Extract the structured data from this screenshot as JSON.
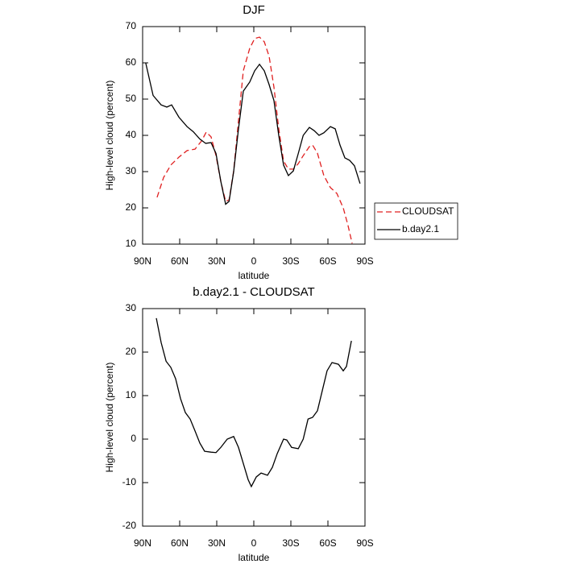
{
  "chart_data": [
    {
      "type": "line",
      "title": "DJF",
      "xlabel": "latitude",
      "ylabel": "High-level cloud (percent)",
      "xlim": [
        90,
        -90
      ],
      "ylim": [
        10,
        70
      ],
      "xticks": [
        {
          "value": 90,
          "label": "90N"
        },
        {
          "value": 60,
          "label": "60N"
        },
        {
          "value": 30,
          "label": "30N"
        },
        0,
        {
          "value": -30,
          "label": "30S"
        },
        {
          "value": -60,
          "label": "60S"
        },
        {
          "value": -90,
          "label": "90S"
        }
      ],
      "yticks": [
        10,
        20,
        30,
        40,
        50,
        60,
        70
      ],
      "legend": "right",
      "series": [
        {
          "name": "CLOUDSAT",
          "color": "#e02020",
          "dashed": true,
          "x": [
            78.3,
            73,
            67.2,
            60.6,
            54,
            47.6,
            42.4,
            38.5,
            34.6,
            30.6,
            26.7,
            22.8,
            20,
            16.3,
            12.4,
            8.5,
            3.3,
            -0.7,
            -4.6,
            -8.5,
            -12.4,
            -16.3,
            -20.2,
            -24.1,
            -28,
            -32,
            -36,
            -40,
            -45,
            -47.6,
            -51.5,
            -56.7,
            -62,
            -67.2,
            -72.4,
            -76.3,
            -79.6
          ],
          "values": [
            22.9,
            28.4,
            31.8,
            34,
            35.8,
            36.2,
            38.4,
            40.9,
            39.6,
            34.4,
            27.3,
            21.8,
            22.2,
            30.2,
            44,
            57.8,
            64,
            66.7,
            67.1,
            65.8,
            61.8,
            53.3,
            41.8,
            32.9,
            30.7,
            30.7,
            32.2,
            34.4,
            36.9,
            37.3,
            35.1,
            28.9,
            25.6,
            24,
            20,
            15.1,
            10.2
          ]
        },
        {
          "name": "b.day2.1",
          "color": "#000000",
          "dashed": false,
          "x": [
            87.5,
            81.5,
            75,
            70.4,
            66.5,
            60.6,
            54,
            49,
            43.7,
            39,
            34.6,
            30.6,
            26.7,
            22.8,
            20,
            16.3,
            12.4,
            8.5,
            3.3,
            -0.7,
            -4.6,
            -8.5,
            -12.4,
            -16.3,
            -20.2,
            -24.1,
            -28,
            -32,
            -36,
            -40,
            -45,
            -48.9,
            -52.8,
            -56.7,
            -62,
            -65.9,
            -69.8,
            -73.7,
            -77.6,
            -81.5,
            -86
          ],
          "values": [
            60,
            51,
            48.4,
            47.8,
            48.4,
            45,
            42.4,
            41,
            39,
            37.8,
            38,
            35,
            27.3,
            21,
            21.8,
            30,
            41.8,
            52.2,
            54.7,
            57.8,
            59.6,
            57.8,
            54,
            49.6,
            40,
            31.8,
            28.9,
            30.2,
            35,
            40,
            42.2,
            41.3,
            40,
            40.7,
            42.4,
            41.8,
            37.3,
            33.8,
            33.1,
            31.6,
            26.7
          ]
        }
      ]
    },
    {
      "type": "line",
      "title": "b.day2.1 - CLOUDSAT",
      "xlabel": "latitude",
      "ylabel": "High-level cloud (percent)",
      "xlim": [
        90,
        -90
      ],
      "ylim": [
        -20,
        30
      ],
      "xticks": [
        {
          "value": 90,
          "label": "90N"
        },
        {
          "value": 60,
          "label": "60N"
        },
        {
          "value": 30,
          "label": "30N"
        },
        0,
        {
          "value": -30,
          "label": "30S"
        },
        {
          "value": -60,
          "label": "60S"
        },
        {
          "value": -90,
          "label": "90S"
        }
      ],
      "yticks": [
        -20,
        -10,
        0,
        10,
        20,
        30
      ],
      "series": [
        {
          "color": "#000000",
          "dashed": false,
          "x": [
            78.9,
            75,
            71,
            67.2,
            63.3,
            59.3,
            55.4,
            51.5,
            47.6,
            43.7,
            39.8,
            34.6,
            30.6,
            26.7,
            21.5,
            16.3,
            12.4,
            8.5,
            4.6,
            2,
            -2,
            -5.9,
            -11.1,
            -15,
            -19,
            -24.1,
            -26.7,
            -30.6,
            -36,
            -40,
            -43.9,
            -47.6,
            -51.5,
            -55.4,
            -59.3,
            -63.3,
            -68.5,
            -72.4,
            -75,
            -79
          ],
          "values": [
            27.8,
            22.2,
            17.9,
            16.5,
            13.9,
            9.3,
            6.1,
            4.6,
            1.9,
            -0.9,
            -2.8,
            -3,
            -3.1,
            -1.9,
            0,
            0.6,
            -1.9,
            -5.6,
            -9.3,
            -10.9,
            -8.7,
            -7.8,
            -8.3,
            -6.5,
            -3.3,
            0,
            -0.2,
            -1.9,
            -2.2,
            0,
            4.6,
            5,
            6.5,
            11.1,
            15.7,
            17.6,
            17.2,
            15.7,
            16.7,
            22.6
          ]
        }
      ]
    }
  ]
}
